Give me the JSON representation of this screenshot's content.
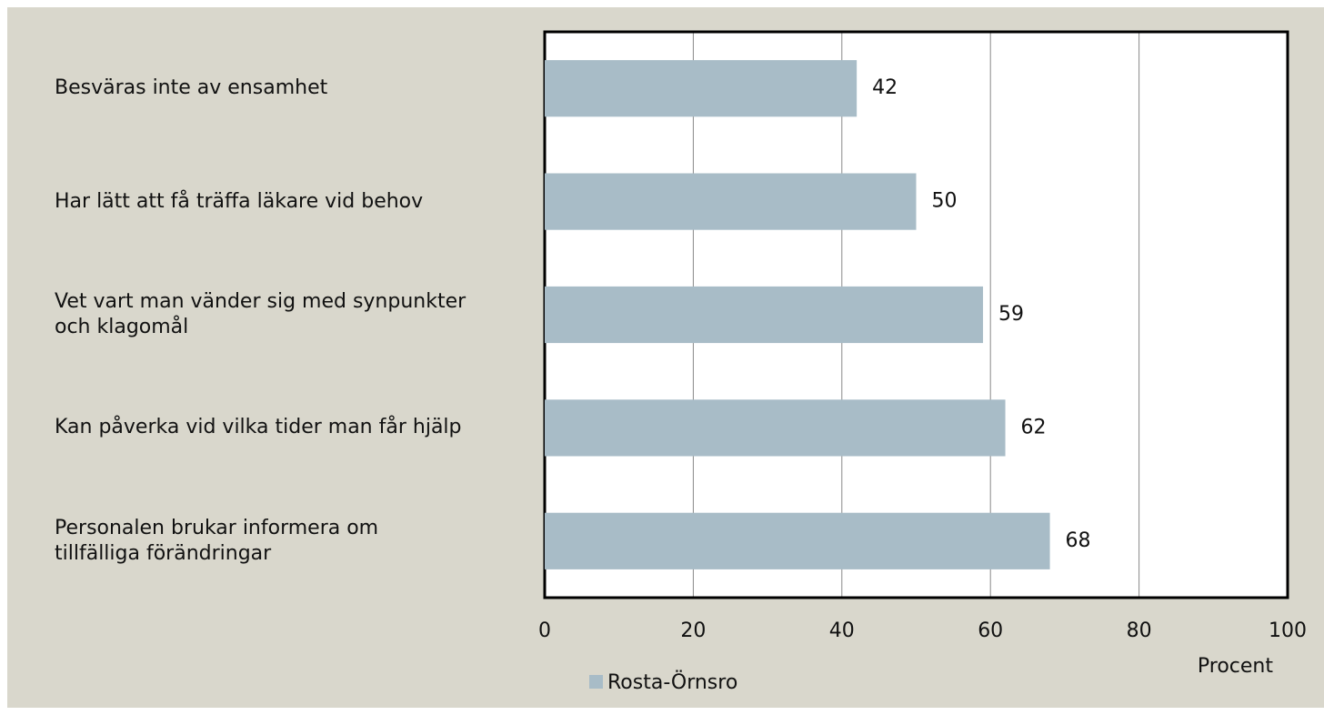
{
  "chart_data": {
    "type": "bar",
    "orientation": "horizontal",
    "categories": [
      "Besväras inte av ensamhet",
      "Har lätt att få träffa läkare vid behov",
      "Vet vart man vänder sig med synpunkter och klagomål",
      "Kan påverka vid vilka tider man får hjälp",
      "Personalen brukar informera om tillfälliga förändringar"
    ],
    "series": [
      {
        "name": "Rosta-Örnsro",
        "color": "#a8bcc7",
        "values": [
          42,
          50,
          59,
          62,
          68
        ]
      }
    ],
    "xlim": [
      0,
      100
    ],
    "xticks": [
      0,
      20,
      40,
      60,
      80,
      100
    ],
    "x_label": "Procent",
    "grid": true
  }
}
